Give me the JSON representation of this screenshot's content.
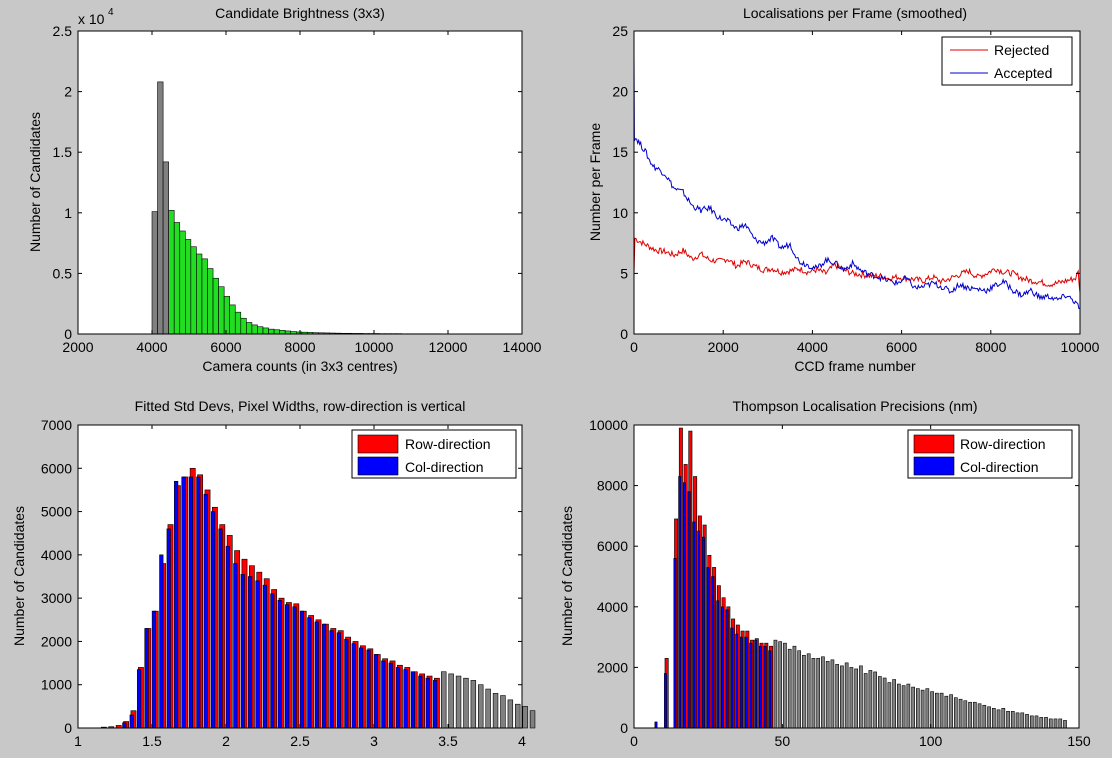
{
  "chart_data": [
    {
      "type": "bar",
      "title": "Candidate Brightness (3x3)",
      "xlabel": "Camera counts (in 3x3 centres)",
      "ylabel": "Number of Candidates",
      "exponent_label": "x 10",
      "exponent_power": "4",
      "xlim": [
        2000,
        14000
      ],
      "ylim": [
        0,
        2.5
      ],
      "xticks": [
        2000,
        4000,
        6000,
        8000,
        10000,
        12000,
        14000
      ],
      "xticklabels": [
        "2000",
        "4000",
        "6000",
        "8000",
        "10000",
        "12000",
        "14000"
      ],
      "yticks": [
        0,
        0.5,
        1,
        1.5,
        2,
        2.5
      ],
      "yticklabels": [
        "0",
        "0.5",
        "1",
        "1.5",
        "2",
        "2.5"
      ],
      "colors": {
        "rejected": "#808080",
        "accepted": "#22dd22"
      },
      "bin_start": 4000,
      "bin_width": 150,
      "series": [
        {
          "values": [
            1.01,
            2.08,
            1.42,
            0.0
          ],
          "color": "rejected"
        },
        {
          "values": [
            0,
            0,
            0,
            1.02,
            0.92,
            0.85,
            0.78,
            0.72,
            0.66,
            0.62,
            0.54,
            0.46,
            0.39,
            0.31,
            0.24,
            0.18,
            0.13,
            0.095,
            0.075,
            0.06,
            0.05,
            0.04,
            0.035,
            0.03,
            0.025,
            0.02,
            0.017,
            0.015,
            0.013,
            0.011,
            0.01,
            0.009,
            0.008,
            0.007,
            0.006,
            0.006,
            0.005,
            0.005,
            0.004,
            0.004,
            0.004,
            0.003,
            0.003,
            0.003,
            0.003,
            0.002,
            0.002,
            0.002,
            0.002,
            0.002,
            0.002,
            0.002,
            0.001,
            0.001,
            0.001,
            0.001,
            0.001
          ],
          "color": "accepted"
        }
      ]
    },
    {
      "type": "line",
      "title": "Localisations per Frame (smoothed)",
      "xlabel": "CCD frame number",
      "ylabel": "Number per Frame",
      "xlim": [
        0,
        10000
      ],
      "ylim": [
        0,
        25
      ],
      "xticks": [
        0,
        2000,
        4000,
        6000,
        8000,
        10000
      ],
      "xticklabels": [
        "0",
        "2000",
        "4000",
        "6000",
        "8000",
        "10000"
      ],
      "yticks": [
        0,
        5,
        10,
        15,
        20,
        25
      ],
      "yticklabels": [
        "0",
        "5",
        "10",
        "15",
        "20",
        "25"
      ],
      "legend_position": "top-right",
      "series": [
        {
          "name": "Rejected",
          "color": "#e00000",
          "x": [
            0,
            20,
            100,
            300,
            500,
            700,
            900,
            1100,
            1300,
            1500,
            1700,
            1900,
            2100,
            2300,
            2500,
            2700,
            2900,
            3100,
            3300,
            3500,
            3700,
            3900,
            4100,
            4300,
            4500,
            4700,
            4900,
            5100,
            5300,
            5500,
            5700,
            5900,
            6100,
            6300,
            6500,
            6700,
            6900,
            7100,
            7300,
            7500,
            7700,
            7900,
            8100,
            8300,
            8500,
            8700,
            8900,
            9100,
            9300,
            9500,
            9700,
            9900,
            9960,
            10000
          ],
          "y": [
            5.0,
            7.9,
            7.7,
            7.3,
            6.9,
            6.8,
            6.5,
            6.9,
            6.2,
            6.6,
            6.1,
            6.0,
            6.2,
            5.6,
            6.0,
            5.6,
            5.3,
            5.4,
            5.1,
            5.2,
            5.4,
            5.1,
            5.3,
            5.0,
            5.7,
            5.3,
            5.0,
            4.9,
            4.8,
            4.8,
            4.6,
            4.7,
            4.6,
            4.5,
            4.4,
            4.7,
            4.3,
            4.6,
            4.9,
            5.2,
            4.7,
            5.0,
            5.4,
            5.1,
            5.0,
            4.6,
            4.4,
            4.3,
            4.1,
            4.2,
            4.4,
            4.6,
            5.1,
            3.4
          ]
        },
        {
          "name": "Accepted",
          "color": "#0000cc",
          "x": [
            0,
            10,
            60,
            150,
            250,
            350,
            450,
            550,
            700,
            900,
            1100,
            1300,
            1500,
            1700,
            1900,
            2100,
            2300,
            2500,
            2700,
            2900,
            3100,
            3300,
            3500,
            3700,
            3900,
            4100,
            4300,
            4500,
            4700,
            4900,
            5100,
            5300,
            5500,
            5700,
            5900,
            6100,
            6300,
            6500,
            6700,
            6900,
            7100,
            7300,
            7500,
            7700,
            7900,
            8100,
            8300,
            8500,
            8700,
            8900,
            9100,
            9300,
            9500,
            9700,
            9900,
            10000
          ],
          "y": [
            23,
            16.2,
            16.1,
            15.6,
            15.1,
            14.3,
            13.8,
            13.6,
            13.2,
            12.0,
            11.7,
            10.6,
            10.2,
            10.4,
            9.6,
            9.3,
            8.7,
            9.0,
            7.8,
            7.5,
            7.9,
            7.1,
            7.4,
            6.0,
            5.7,
            5.4,
            6.1,
            5.9,
            5.3,
            5.8,
            5.2,
            4.9,
            4.7,
            4.4,
            4.2,
            4.6,
            3.8,
            3.9,
            4.2,
            3.9,
            3.5,
            4.1,
            3.8,
            3.7,
            3.6,
            4.0,
            4.3,
            3.6,
            3.2,
            3.6,
            3.0,
            3.1,
            2.8,
            3.2,
            2.6,
            2.1
          ]
        }
      ]
    },
    {
      "type": "bar",
      "title": "Fitted Std Devs, Pixel Widths, row-direction is vertical",
      "xlabel": "",
      "ylabel": "Number of Candidates",
      "xlim": [
        1,
        4
      ],
      "ylim": [
        0,
        7000
      ],
      "xticks": [
        1,
        1.5,
        2,
        2.5,
        3,
        3.5,
        4
      ],
      "xticklabels": [
        "1",
        "1.5",
        "2",
        "2.5",
        "3",
        "3.5",
        "4"
      ],
      "yticks": [
        0,
        1000,
        2000,
        3000,
        4000,
        5000,
        6000,
        7000
      ],
      "yticklabels": [
        "0",
        "1000",
        "2000",
        "3000",
        "4000",
        "5000",
        "6000",
        "7000"
      ],
      "legend_position": "top-right",
      "legend": [
        {
          "name": "Row-direction",
          "color": "#ff0000"
        },
        {
          "name": "Col-direction",
          "color": "#0000ff"
        }
      ],
      "rejected_color": "#808080",
      "bin_start": 1.15,
      "bin_width": 0.05,
      "row_values": [
        20,
        30,
        60,
        150,
        400,
        1400,
        2300,
        2700,
        3800,
        4700,
        5600,
        5800,
        6000,
        5850,
        5500,
        5100,
        4700,
        4450,
        4100,
        3900,
        3750,
        3600,
        3450,
        3200,
        3000,
        2900,
        2870,
        2700,
        2600,
        2500,
        2400,
        2300,
        2250,
        2100,
        2000,
        1900,
        1830,
        1700,
        1600,
        1550,
        1450,
        1400,
        1300,
        1250,
        1200,
        1150
      ],
      "col_values": [
        0,
        0,
        0,
        120,
        300,
        1350,
        2300,
        2700,
        4000,
        4600,
        5700,
        5800,
        5800,
        5800,
        5400,
        5000,
        4600,
        4200,
        3800,
        3550,
        3500,
        3400,
        3300,
        3100,
        2950,
        2850,
        2800,
        2700,
        2550,
        2450,
        2400,
        2250,
        2200,
        2050,
        1950,
        1850,
        1800,
        1700,
        1550,
        1500,
        1400,
        1350,
        1300,
        1200,
        1150,
        1100
      ],
      "rejected_values": [
        1300,
        1250,
        1200,
        1150,
        1100,
        1000,
        900,
        800,
        750,
        650,
        550,
        500,
        400
      ]
    },
    {
      "type": "bar",
      "title": "Thompson Localisation Precisions (nm)",
      "xlabel": "",
      "ylabel": "Number of Candidates",
      "xlim": [
        0,
        150
      ],
      "ylim": [
        0,
        10000
      ],
      "xticks": [
        0,
        50,
        100,
        150
      ],
      "xticklabels": [
        "0",
        "50",
        "100",
        "150"
      ],
      "yticks": [
        0,
        2000,
        4000,
        6000,
        8000,
        10000
      ],
      "yticklabels": [
        "0",
        "2000",
        "4000",
        "6000",
        "8000",
        "10000"
      ],
      "legend_position": "top-right",
      "legend": [
        {
          "name": "Row-direction",
          "color": "#ff0000"
        },
        {
          "name": "Col-direction",
          "color": "#0000ff"
        }
      ],
      "rejected_color": "#808080",
      "bin_start": 7,
      "bin_width": 1.6,
      "row_values": [
        0,
        0,
        2300,
        0,
        6900,
        9900,
        8700,
        9800,
        8300,
        7000,
        6700,
        5700,
        5300,
        4700,
        4300,
        4000,
        3600,
        3400,
        3200,
        3200,
        2900,
        2950,
        2800,
        2800,
        2700
      ],
      "col_values": [
        200,
        0,
        1800,
        0,
        5600,
        8300,
        8100,
        7800,
        6800,
        6500,
        6300,
        5300,
        5000,
        4200,
        4000,
        3900,
        3300,
        3100,
        3000,
        3000,
        2800,
        2900,
        2700,
        2700,
        2550
      ],
      "rejected_values": [
        2900,
        2850,
        2800,
        2600,
        2700,
        2550,
        2400,
        2450,
        2300,
        2300,
        2350,
        2200,
        2250,
        2100,
        2050,
        2150,
        2000,
        1950,
        2050,
        1800,
        1900,
        1850,
        1700,
        1650,
        1500,
        1600,
        1450,
        1400,
        1450,
        1350,
        1300,
        1250,
        1300,
        1200,
        1150,
        1150,
        1050,
        1100,
        1000,
        950,
        900,
        850,
        850,
        800,
        750,
        700,
        650,
        600,
        650,
        550,
        550,
        500,
        500,
        450,
        400,
        400,
        350,
        350,
        300,
        300,
        300,
        250
      ]
    }
  ]
}
